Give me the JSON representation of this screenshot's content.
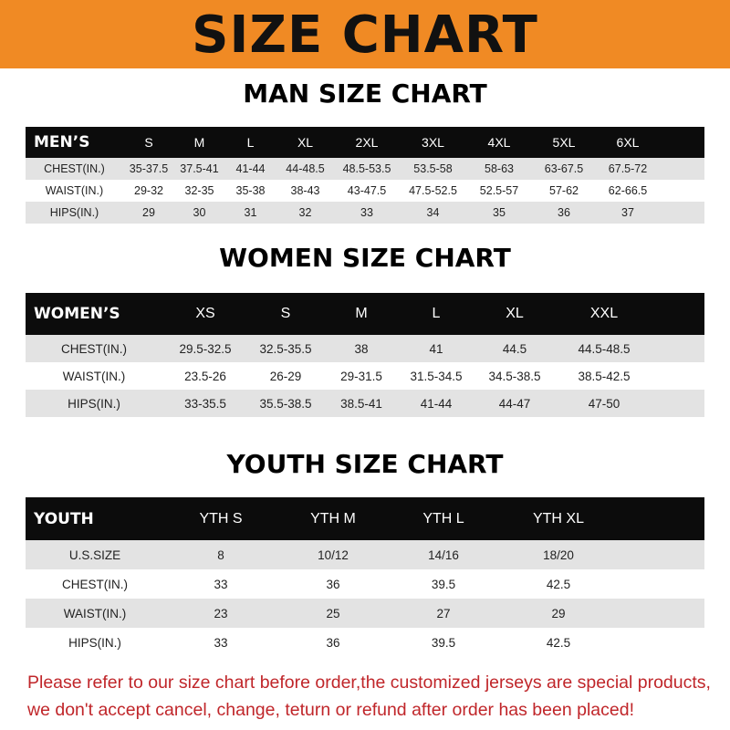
{
  "title": "SIZE CHART",
  "men": {
    "title": "MAN SIZE CHART",
    "header": [
      "MEN’S",
      "S",
      "M",
      "L",
      "XL",
      "2XL",
      "3XL",
      "4XL",
      "5XL",
      "6XL"
    ],
    "rows": [
      [
        "CHEST(IN.)",
        "35-37.5",
        "37.5-41",
        "41-44",
        "44-48.5",
        "48.5-53.5",
        "53.5-58",
        "58-63",
        "63-67.5",
        "67.5-72"
      ],
      [
        "WAIST(IN.)",
        "29-32",
        "32-35",
        "35-38",
        "38-43",
        "43-47.5",
        "47.5-52.5",
        "52.5-57",
        "57-62",
        "62-66.5"
      ],
      [
        "HIPS(IN.)",
        "29",
        "30",
        "31",
        "32",
        "33",
        "34",
        "35",
        "36",
        "37"
      ]
    ]
  },
  "women": {
    "title": "WOMEN SIZE CHART",
    "header": [
      "WOMEN’S",
      "XS",
      "S",
      "M",
      "L",
      "XL",
      "XXL"
    ],
    "rows": [
      [
        "CHEST(IN.)",
        "29.5-32.5",
        "32.5-35.5",
        "38",
        "41",
        "44.5",
        "44.5-48.5"
      ],
      [
        "WAIST(IN.)",
        "23.5-26",
        "26-29",
        "29-31.5",
        "31.5-34.5",
        "34.5-38.5",
        "38.5-42.5"
      ],
      [
        "HIPS(IN.)",
        "33-35.5",
        "35.5-38.5",
        "38.5-41",
        "41-44",
        "44-47",
        "47-50"
      ]
    ]
  },
  "youth": {
    "title": "YOUTH SIZE CHART",
    "header": [
      "YOUTH",
      "YTH S",
      "YTH M",
      "YTH L",
      "YTH XL"
    ],
    "rows": [
      [
        "U.S.SIZE",
        "8",
        "10/12",
        "14/16",
        "18/20"
      ],
      [
        "CHEST(IN.)",
        "33",
        "36",
        "39.5",
        "42.5"
      ],
      [
        "WAIST(IN.)",
        "23",
        "25",
        "27",
        "29"
      ],
      [
        "HIPS(IN.)",
        "33",
        "36",
        "39.5",
        "42.5"
      ]
    ]
  },
  "note": {
    "line1": "Please refer to our size chart before order,the customized jerseys are special products,",
    "line2": "we don't accept cancel, change, teturn or refund after order has been placed!"
  },
  "colors": {
    "banner": "#f08a24",
    "header_row": "#0c0c0c",
    "stripe": "#e3e3e3",
    "note": "#c0262a"
  }
}
